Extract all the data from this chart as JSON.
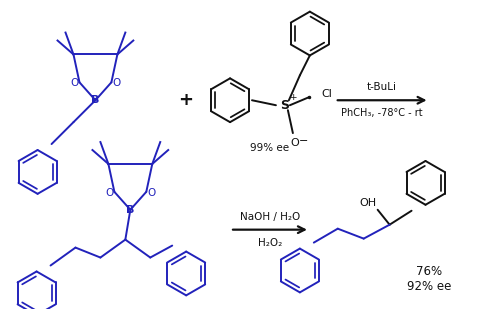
{
  "bg_color": "#ffffff",
  "blue_color": "#2222bb",
  "black_color": "#111111",
  "lw": 1.4,
  "fig_width": 5.0,
  "fig_height": 3.1,
  "dpi": 100,
  "reaction1_line1": "t-BuLi",
  "reaction1_line2": "PhCH₃, -78°C - rt",
  "reaction2_line1": "NaOH / H₂O",
  "reaction2_line2": "H₂O₂",
  "yield_text": "76%",
  "ee_text": "92% ee",
  "ee_top": "99% ee"
}
